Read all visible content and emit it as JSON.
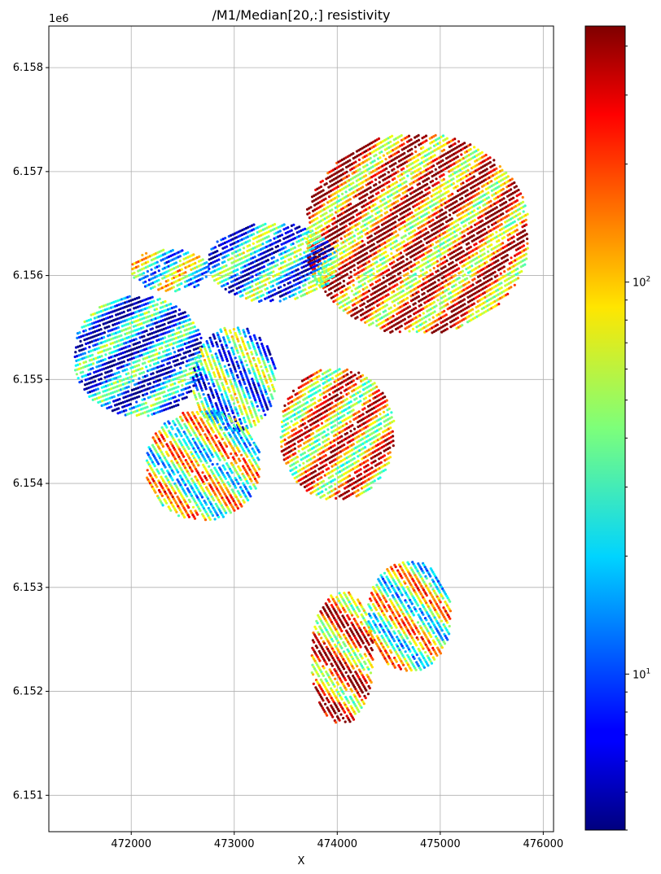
{
  "chart_data": {
    "type": "scatter",
    "title": "/M1/Median[20,:] resistivity",
    "xlabel": "X",
    "ylabel": "",
    "y_offset_label": "1e6",
    "xlim": [
      471200,
      476100
    ],
    "ylim": [
      6150650,
      6158400
    ],
    "x_ticks": [
      472000,
      473000,
      474000,
      475000,
      476000
    ],
    "x_tick_labels": [
      "472000",
      "473000",
      "474000",
      "475000",
      "476000"
    ],
    "y_ticks": [
      6151000,
      6152000,
      6153000,
      6154000,
      6155000,
      6156000,
      6157000,
      6158000
    ],
    "y_tick_labels": [
      "6.151",
      "6.152",
      "6.153",
      "6.154",
      "6.155",
      "6.156",
      "6.157",
      "6.158"
    ],
    "grid": true,
    "colormap": "jet",
    "colorbar": {
      "scale": "log",
      "range": [
        4,
        450
      ],
      "major_ticks": [
        10,
        100
      ],
      "major_tick_labels": [
        "10^1",
        "10^2"
      ]
    },
    "clusters": [
      {
        "name": "north-east block",
        "x_range": [
          473700,
          475850
        ],
        "y_range": [
          6155450,
          6157350
        ],
        "line_angle_deg": -30,
        "level": 0.8
      },
      {
        "name": "north-central block",
        "x_range": [
          472750,
          474000
        ],
        "y_range": [
          6155750,
          6156500
        ],
        "line_angle_deg": -25,
        "level": 0.3
      },
      {
        "name": "north-west block",
        "x_range": [
          472000,
          472750
        ],
        "y_range": [
          6155850,
          6156250
        ],
        "line_angle_deg": -25,
        "level": 0.45
      },
      {
        "name": "west block",
        "x_range": [
          471450,
          472700
        ],
        "y_range": [
          6154650,
          6155800
        ],
        "line_angle_deg": -20,
        "level": 0.25
      },
      {
        "name": "central block",
        "x_range": [
          472600,
          473400
        ],
        "y_range": [
          6154500,
          6155500
        ],
        "line_angle_deg": 70,
        "level": 0.35
      },
      {
        "name": "south-west block",
        "x_range": [
          472150,
          473250
        ],
        "y_range": [
          6153650,
          6154700
        ],
        "line_angle_deg": 60,
        "level": 0.55
      },
      {
        "name": "central east block",
        "x_range": [
          473450,
          474550
        ],
        "y_range": [
          6153850,
          6155100
        ],
        "line_angle_deg": -30,
        "level": 0.72
      },
      {
        "name": "south block",
        "x_range": [
          473750,
          474350
        ],
        "y_range": [
          6151700,
          6152950
        ],
        "line_angle_deg": 60,
        "level": 0.78
      },
      {
        "name": "south-east block",
        "x_range": [
          474300,
          475100
        ],
        "y_range": [
          6152200,
          6153250
        ],
        "line_angle_deg": 60,
        "level": 0.55
      }
    ]
  }
}
